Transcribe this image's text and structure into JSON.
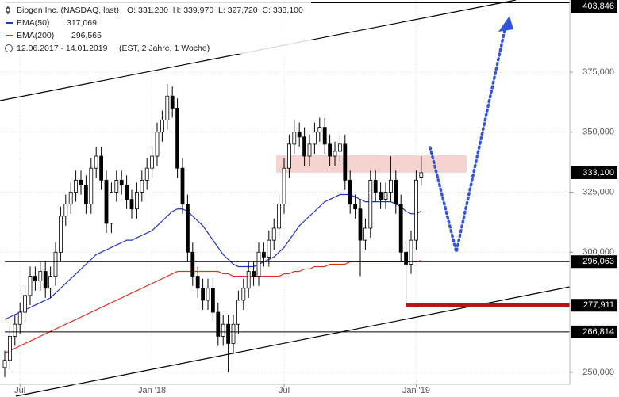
{
  "chart_data": {
    "type": "candlestick",
    "title": "Biogen Inc. (NASDAQ, last)",
    "ohlc_text": "O: 331,280  H: 339,970  L: 327,720  C: 333,100",
    "period": "12.06.2017 - 14.01.2019",
    "period_note": "(EST, 2 Jahre, 1 Woche)",
    "log_scale": false,
    "grid": true,
    "color_up": "#ffffff",
    "color_down": "#000000",
    "ylim": [
      245000,
      405000
    ],
    "yticks": [
      {
        "value": 250000,
        "label": "250,000"
      },
      {
        "value": 300000,
        "label": "300,000"
      },
      {
        "value": 325000,
        "label": "325,000"
      },
      {
        "value": 350000,
        "label": "350,000"
      },
      {
        "value": 375000,
        "label": "375,000"
      }
    ],
    "xticks": [
      {
        "value": 3,
        "label": "Jul"
      },
      {
        "value": 29,
        "label": "Jan '18"
      },
      {
        "value": 55,
        "label": "Jul"
      },
      {
        "value": 81,
        "label": "Jan '19"
      }
    ],
    "open": [
      252000,
      255000,
      265000,
      270000,
      275000,
      282000,
      290000,
      288000,
      292000,
      285000,
      290000,
      300000,
      315000,
      320000,
      325000,
      330000,
      328000,
      320000,
      335000,
      340000,
      330000,
      312000,
      325000,
      330000,
      328000,
      322000,
      318000,
      325000,
      330000,
      335000,
      340000,
      350000,
      355000,
      365000,
      360000,
      335000,
      320000,
      300000,
      290000,
      285000,
      280000,
      285000,
      275000,
      265000,
      270000,
      262000,
      270000,
      280000,
      285000,
      292000,
      290000,
      300000,
      298000,
      305000,
      310000,
      320000,
      335000,
      345000,
      350000,
      348000,
      340000,
      345000,
      350000,
      352000,
      345000,
      340000,
      342000,
      345000,
      330000,
      320000,
      318000,
      305000,
      310000,
      330000,
      325000,
      322000,
      325000,
      330000,
      320000,
      300000,
      295000,
      305000,
      331280
    ],
    "high": [
      259000,
      269000,
      274000,
      279000,
      286000,
      294000,
      294000,
      296000,
      296000,
      294000,
      304000,
      319000,
      324000,
      329000,
      334000,
      334000,
      332000,
      339000,
      344000,
      344000,
      334000,
      329000,
      334000,
      334000,
      332000,
      326000,
      329000,
      334000,
      339000,
      344000,
      354000,
      359000,
      370000,
      369000,
      364000,
      339000,
      324000,
      304000,
      294000,
      289000,
      289000,
      289000,
      279000,
      274000,
      274000,
      274000,
      284000,
      289000,
      296000,
      296000,
      304000,
      304000,
      309000,
      314000,
      324000,
      339000,
      349000,
      355000,
      354000,
      352000,
      349000,
      354000,
      356000,
      356000,
      349000,
      346000,
      349000,
      349000,
      334000,
      324000,
      322000,
      314000,
      334000,
      334000,
      329000,
      329000,
      340000,
      334000,
      324000,
      304000,
      309000,
      334000,
      339970
    ],
    "low": [
      248000,
      251000,
      261000,
      266000,
      271000,
      278000,
      284000,
      284000,
      281000,
      281000,
      286000,
      296000,
      311000,
      316000,
      321000,
      324000,
      316000,
      316000,
      331000,
      326000,
      308000,
      308000,
      321000,
      324000,
      318000,
      314000,
      314000,
      321000,
      326000,
      331000,
      336000,
      346000,
      351000,
      356000,
      331000,
      316000,
      296000,
      286000,
      281000,
      276000,
      276000,
      271000,
      261000,
      261000,
      250000,
      258000,
      266000,
      276000,
      281000,
      286000,
      286000,
      294000,
      294000,
      301000,
      306000,
      316000,
      331000,
      341000,
      344000,
      336000,
      336000,
      341000,
      346000,
      341000,
      336000,
      336000,
      338000,
      326000,
      316000,
      314000,
      290000,
      301000,
      306000,
      321000,
      318000,
      318000,
      321000,
      316000,
      296000,
      278000,
      291000,
      301000,
      327720
    ],
    "close": [
      255000,
      265000,
      270000,
      275000,
      282000,
      290000,
      288000,
      292000,
      285000,
      290000,
      300000,
      315000,
      320000,
      325000,
      330000,
      328000,
      320000,
      335000,
      340000,
      330000,
      312000,
      325000,
      330000,
      328000,
      322000,
      318000,
      325000,
      330000,
      335000,
      340000,
      350000,
      355000,
      365000,
      360000,
      335000,
      320000,
      300000,
      290000,
      285000,
      280000,
      285000,
      275000,
      265000,
      270000,
      262000,
      270000,
      280000,
      285000,
      292000,
      290000,
      300000,
      298000,
      305000,
      310000,
      320000,
      335000,
      345000,
      350000,
      348000,
      340000,
      345000,
      350000,
      352000,
      345000,
      340000,
      342000,
      345000,
      330000,
      320000,
      318000,
      305000,
      310000,
      330000,
      325000,
      322000,
      325000,
      330000,
      320000,
      300000,
      295000,
      305000,
      330000,
      333100
    ],
    "series": [
      {
        "name": "EMA(50)",
        "value_label": "317,069",
        "color": "#2233cc",
        "values": [
          272000,
          273000,
          274000,
          275000,
          276000,
          277000,
          278000,
          279000,
          280000,
          281000,
          283000,
          285000,
          287000,
          289000,
          291000,
          293000,
          295000,
          297000,
          299000,
          300000,
          301000,
          302000,
          303000,
          304000,
          305000,
          305000,
          306000,
          307000,
          308000,
          309000,
          311000,
          313000,
          315000,
          317000,
          318000,
          318000,
          317000,
          315000,
          313000,
          311000,
          308000,
          305000,
          302000,
          299000,
          297000,
          295000,
          294000,
          294000,
          294000,
          294000,
          295000,
          296000,
          297000,
          298000,
          300000,
          302000,
          305000,
          308000,
          311000,
          313000,
          315000,
          317000,
          319000,
          321000,
          322000,
          323000,
          324000,
          324000,
          324000,
          323000,
          322000,
          321000,
          321000,
          321000,
          321000,
          321000,
          321000,
          320000,
          319000,
          317000,
          316000,
          316000,
          317069
        ]
      },
      {
        "name": "EMA(200)",
        "value_label": "296,565",
        "color": "#dd3322",
        "values": [
          258000,
          259000,
          260000,
          261000,
          262000,
          263000,
          264000,
          265000,
          266000,
          267000,
          268000,
          269000,
          270000,
          271000,
          272000,
          273000,
          274000,
          275000,
          276000,
          277000,
          278000,
          279000,
          280000,
          281000,
          282000,
          283000,
          284000,
          285000,
          286000,
          287000,
          288000,
          289000,
          290000,
          291000,
          292000,
          292000,
          292000,
          292000,
          292000,
          292000,
          292000,
          292000,
          292000,
          291000,
          291000,
          290000,
          290000,
          290000,
          290000,
          290000,
          290000,
          290000,
          290000,
          290000,
          290000,
          291000,
          291000,
          292000,
          292000,
          293000,
          293000,
          294000,
          294000,
          294000,
          295000,
          295000,
          295000,
          295000,
          296000,
          296000,
          296000,
          296000,
          296000,
          296000,
          296000,
          296000,
          296000,
          296000,
          296000,
          296000,
          296000,
          296000,
          296565
        ]
      }
    ],
    "levels": [
      {
        "value": 403846,
        "label": "403,846",
        "line_color": "#000000",
        "line_width": 1,
        "from": 0
      },
      {
        "value": 333100,
        "label": "333,100",
        "line_color": "none",
        "line_width": 0,
        "from": 82
      },
      {
        "value": 296063,
        "label": "296,063",
        "line_color": "#000000",
        "line_width": 1,
        "from": 0
      },
      {
        "value": 277911,
        "label": "277,911",
        "line_color": "#b01818",
        "line_width": 5,
        "from": 79
      },
      {
        "value": 266814,
        "label": "266,814",
        "line_color": "#000000",
        "line_width": 1,
        "from": 0
      }
    ]
  }
}
